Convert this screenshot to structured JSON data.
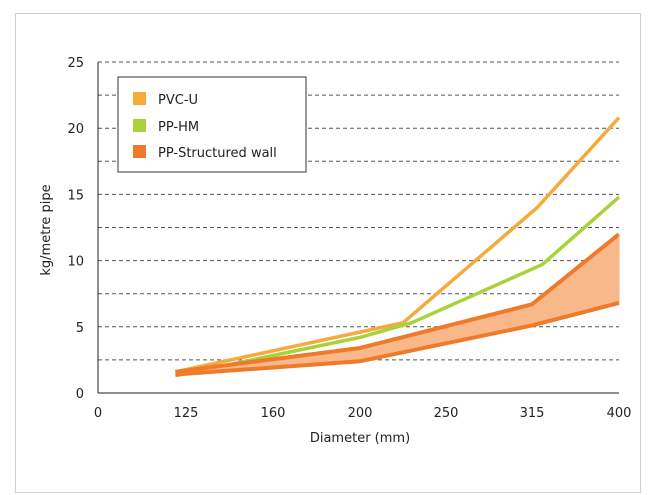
{
  "chart_data": {
    "type": "line",
    "xlabel": "Diameter (mm)",
    "ylabel": "kg/metre pipe",
    "x_tick_labels": [
      "0",
      "125",
      "160",
      "200",
      "250",
      "315",
      "400"
    ],
    "y_tick_labels": [
      "0",
      "5",
      "10",
      "15",
      "20",
      "25"
    ],
    "ylim": [
      0,
      25
    ],
    "grid": "horizontal dashed",
    "legend_position": "top-left",
    "series": [
      {
        "name": "PVC-U",
        "color": "#f7aa3c",
        "style": "line",
        "x": [
          110,
          225,
          320,
          400
        ],
        "y": [
          1.6,
          5.3,
          14.0,
          20.8
        ]
      },
      {
        "name": "PP-HM",
        "color": "#a9d13a",
        "style": "line",
        "x": [
          110,
          200,
          230,
          325,
          400
        ],
        "y": [
          1.3,
          4.2,
          5.3,
          9.7,
          14.8
        ]
      },
      {
        "name": "PP-Structured wall",
        "color": "#ef7a2a",
        "fill_color": "#f8b889",
        "style": "band",
        "x": [
          110,
          200,
          315,
          400
        ],
        "upper": [
          1.6,
          3.4,
          6.7,
          12.0
        ],
        "lower": [
          1.4,
          2.4,
          5.1,
          6.8
        ]
      }
    ]
  }
}
